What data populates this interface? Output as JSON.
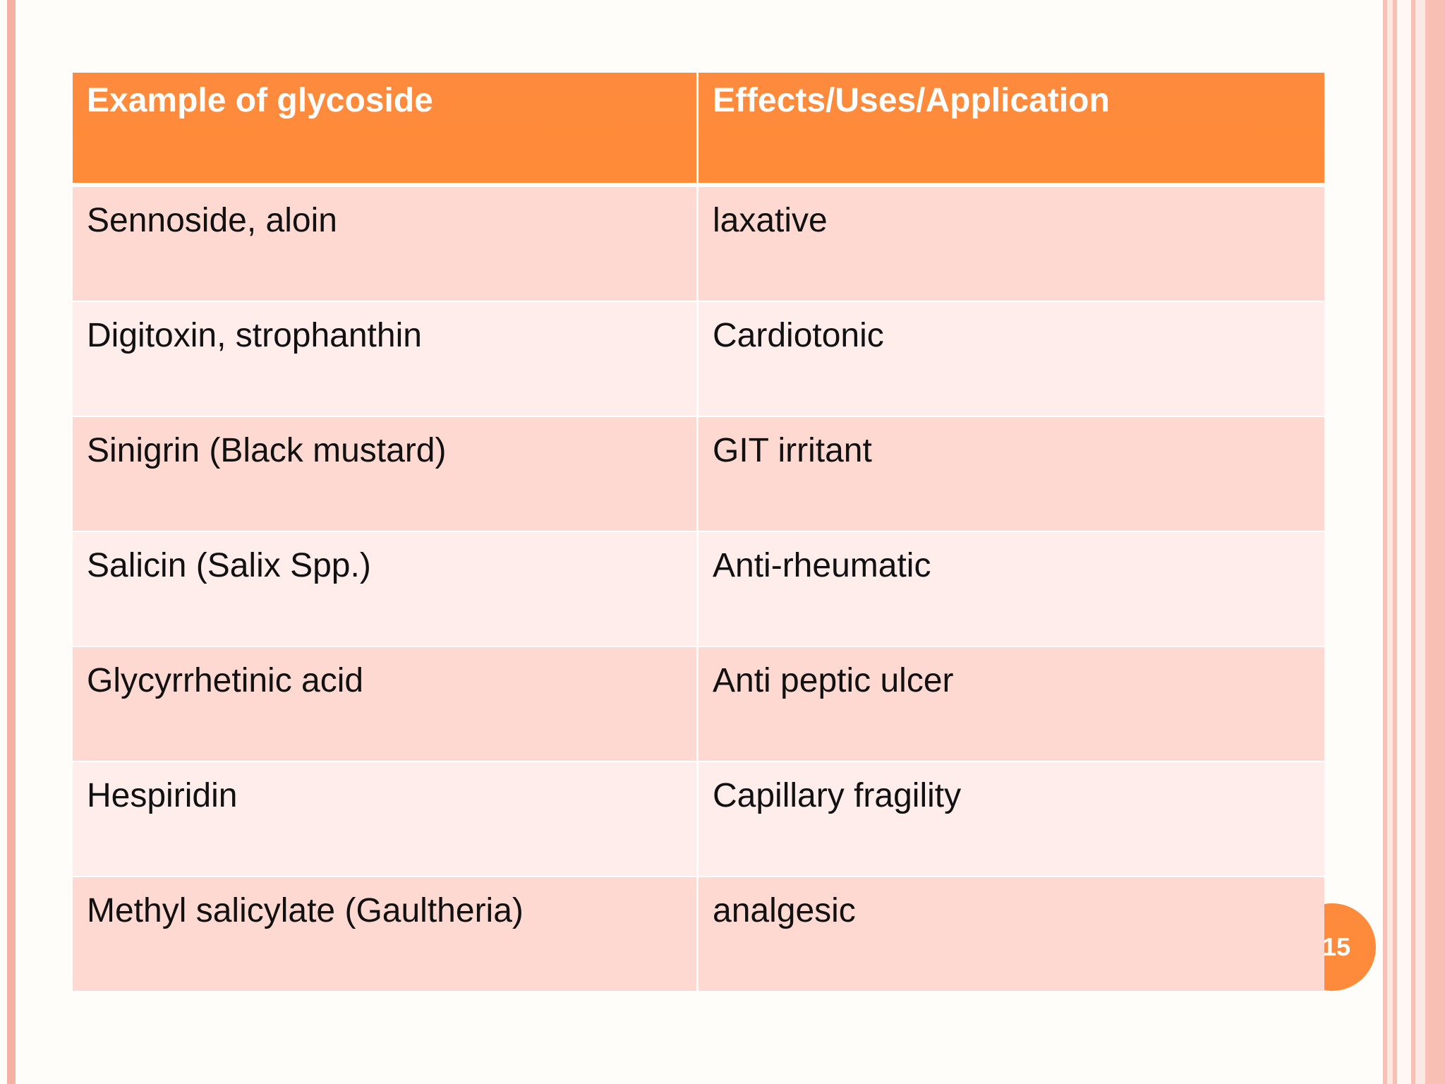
{
  "slide": {
    "page_number": "15",
    "accent_color": "#fe8a3b",
    "row_color_odd": "#fdd9d1",
    "row_color_even": "#feedea"
  },
  "table": {
    "headers": [
      "Example of glycoside",
      "Effects/Uses/Application"
    ],
    "rows": [
      [
        "Sennoside, aloin",
        "laxative"
      ],
      [
        "Digitoxin, strophanthin",
        "Cardiotonic"
      ],
      [
        "Sinigrin (Black mustard)",
        "GIT irritant"
      ],
      [
        "Salicin (Salix Spp.)",
        "Anti-rheumatic"
      ],
      [
        "Glycyrrhetinic acid",
        "Anti peptic ulcer"
      ],
      [
        "Hespiridin",
        "Capillary fragility"
      ],
      [
        "Methyl salicylate (Gaultheria)",
        "analgesic"
      ]
    ]
  }
}
